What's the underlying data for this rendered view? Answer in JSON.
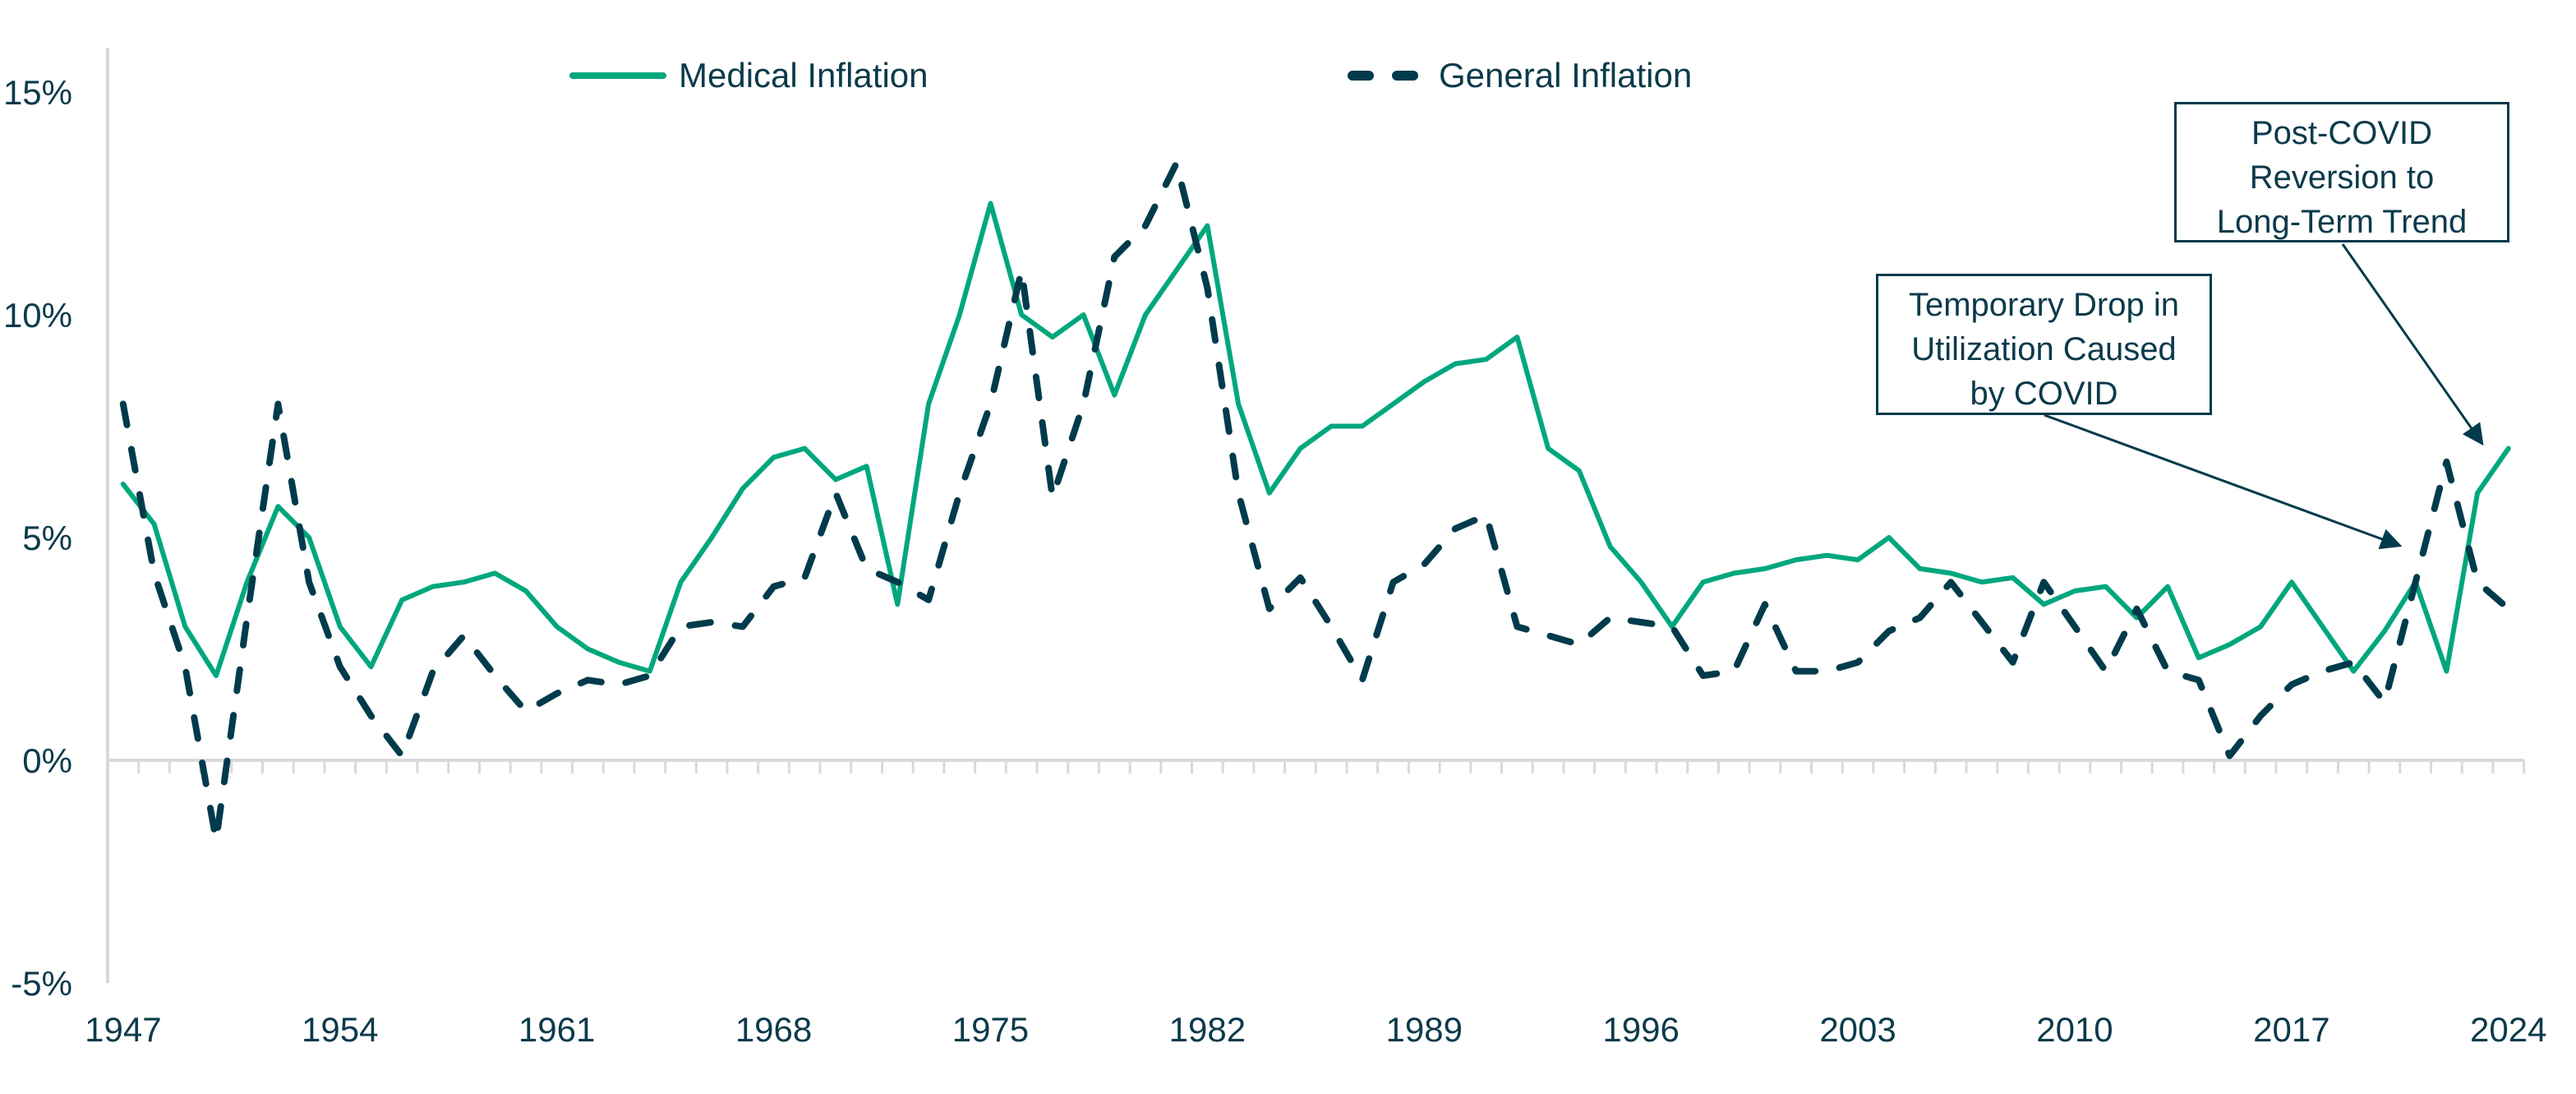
{
  "chart_data": {
    "type": "line",
    "title": "",
    "xlabel": "",
    "ylabel": "",
    "ylim": [
      -5,
      15
    ],
    "grid": false,
    "legend_position": "top-center",
    "x": [
      1947,
      1948,
      1949,
      1950,
      1951,
      1952,
      1953,
      1954,
      1955,
      1956,
      1957,
      1958,
      1959,
      1960,
      1961,
      1962,
      1963,
      1964,
      1965,
      1966,
      1967,
      1968,
      1969,
      1970,
      1971,
      1972,
      1973,
      1974,
      1975,
      1976,
      1977,
      1978,
      1979,
      1980,
      1981,
      1982,
      1983,
      1984,
      1985,
      1986,
      1987,
      1988,
      1989,
      1990,
      1991,
      1992,
      1993,
      1994,
      1995,
      1996,
      1997,
      1998,
      1999,
      2000,
      2001,
      2002,
      2003,
      2004,
      2005,
      2006,
      2007,
      2008,
      2009,
      2010,
      2011,
      2012,
      2013,
      2014,
      2015,
      2016,
      2017,
      2018,
      2019,
      2020,
      2021,
      2022,
      2023,
      2024
    ],
    "x_tick_labels": [
      "1947",
      "1954",
      "1961",
      "1968",
      "1975",
      "1982",
      "1989",
      "1996",
      "2003",
      "2010",
      "2017",
      "2024"
    ],
    "y_ticks": [
      {
        "value": 15,
        "label": "15%"
      },
      {
        "value": 10,
        "label": "10%"
      },
      {
        "value": 5,
        "label": "5%"
      },
      {
        "value": 0,
        "label": "0%"
      },
      {
        "value": -5,
        "label": "-5%"
      }
    ],
    "series": [
      {
        "name": "Medical Inflation",
        "style": "solid",
        "color": "#00a77d",
        "values": [
          6.2,
          5.3,
          3.0,
          1.9,
          4.0,
          5.7,
          5.0,
          3.0,
          2.1,
          3.6,
          3.9,
          4.0,
          4.2,
          3.8,
          3.0,
          2.5,
          2.2,
          2.0,
          4.0,
          5.0,
          6.1,
          6.8,
          7.0,
          6.3,
          6.6,
          3.5,
          8.0,
          10.0,
          12.5,
          10.0,
          9.5,
          10.0,
          8.2,
          10.0,
          11.0,
          12.0,
          8.0,
          6.0,
          7.0,
          7.5,
          7.5,
          8.0,
          8.5,
          8.9,
          9.0,
          9.5,
          7.0,
          6.5,
          4.8,
          4.0,
          3.0,
          4.0,
          4.2,
          4.3,
          4.5,
          4.6,
          4.5,
          5.0,
          4.3,
          4.2,
          4.0,
          4.1,
          3.5,
          3.8,
          3.9,
          3.2,
          3.9,
          2.3,
          2.6,
          3.0,
          4.0,
          3.0,
          2.0,
          2.9,
          4.0,
          2.0,
          6.0,
          7.0
        ]
      },
      {
        "name": "General Inflation",
        "style": "dashed",
        "color": "#003b4c",
        "values": [
          8.0,
          4.2,
          2.1,
          -1.8,
          3.2,
          8.0,
          4.0,
          2.1,
          1.0,
          0.1,
          2.0,
          2.8,
          1.9,
          1.1,
          1.5,
          1.8,
          1.7,
          1.9,
          3.0,
          3.1,
          3.0,
          3.9,
          4.1,
          6.0,
          4.3,
          4.0,
          3.6,
          6.0,
          8.0,
          11.0,
          5.9,
          8.0,
          11.3,
          12.0,
          13.4,
          10.6,
          6.0,
          3.4,
          4.1,
          3.0,
          1.8,
          4.0,
          4.4,
          5.2,
          5.5,
          3.0,
          2.8,
          2.6,
          3.2,
          3.1,
          3.0,
          1.9,
          2.0,
          3.5,
          2.0,
          2.0,
          2.2,
          2.9,
          3.2,
          4.0,
          3.1,
          2.2,
          4.0,
          3.0,
          2.0,
          3.4,
          2.0,
          1.8,
          0.1,
          1.0,
          1.7,
          2.0,
          2.2,
          1.3,
          4.0,
          6.7,
          4.0,
          3.4
        ]
      }
    ],
    "annotations": [
      {
        "lines": [
          "Post-COVID",
          "Reversion to",
          "Long-Term Trend"
        ],
        "points_to_year": 2023,
        "points_to_value": 6.7
      },
      {
        "lines": [
          "Temporary Drop in",
          "Utilization Caused",
          "by COVID"
        ],
        "points_to_year": 2020,
        "points_to_value": 4.5
      }
    ],
    "colors": {
      "axis": "#d9d9d9",
      "text": "#0b3a4b",
      "annotation": "#003b4c"
    }
  }
}
